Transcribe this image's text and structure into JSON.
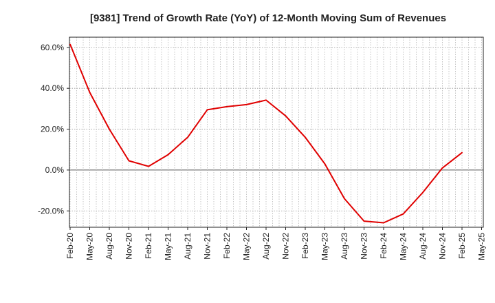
{
  "chart_data": {
    "type": "line",
    "title": "[9381]  Trend of Growth Rate (YoY) of 12-Month Moving Sum of Revenues",
    "xlabel": "",
    "ylabel": "",
    "x_ticks": [
      "Feb-20",
      "May-20",
      "Aug-20",
      "Nov-20",
      "Feb-21",
      "May-21",
      "Aug-21",
      "Nov-21",
      "Feb-22",
      "May-22",
      "Aug-22",
      "Nov-22",
      "Feb-23",
      "May-23",
      "Aug-23",
      "Nov-23",
      "Feb-24",
      "May-24",
      "Aug-24",
      "Nov-24",
      "Feb-25",
      "May-25"
    ],
    "y_ticks": [
      -20,
      0,
      20,
      40,
      60
    ],
    "y_tick_labels": [
      "-20.0%",
      "0.0%",
      "20.0%",
      "40.0%",
      "60.0%"
    ],
    "ylim": [
      -28,
      65
    ],
    "x_months": [
      "2020-02",
      "2020-03",
      "2020-04",
      "2020-05",
      "2020-06",
      "2020-07",
      "2020-08",
      "2020-09",
      "2020-10",
      "2020-11",
      "2020-12",
      "2021-01",
      "2021-02",
      "2021-03",
      "2021-04",
      "2021-05",
      "2021-06",
      "2021-07",
      "2021-08",
      "2021-09",
      "2021-10",
      "2021-11",
      "2021-12",
      "2022-01",
      "2022-02",
      "2022-03",
      "2022-04",
      "2022-05",
      "2022-06",
      "2022-07",
      "2022-08",
      "2022-09",
      "2022-10",
      "2022-11",
      "2022-12",
      "2023-01",
      "2023-02",
      "2023-03",
      "2023-04",
      "2023-05",
      "2023-06",
      "2023-07",
      "2023-08",
      "2023-09",
      "2023-10",
      "2023-11",
      "2023-12",
      "2024-01",
      "2024-02",
      "2024-03",
      "2024-04",
      "2024-05",
      "2024-06",
      "2024-07",
      "2024-08",
      "2024-09",
      "2024-10",
      "2024-11",
      "2024-12",
      "2025-01",
      "2025-02",
      "2025-03",
      "2025-04",
      "2025-05"
    ],
    "series": [
      {
        "name": "",
        "color": "#e00000",
        "values": [
          61.5,
          null,
          null,
          38.0,
          null,
          null,
          20.0,
          null,
          null,
          4.5,
          null,
          null,
          1.8,
          null,
          null,
          7.5,
          null,
          null,
          16.0,
          null,
          null,
          29.5,
          null,
          null,
          31.0,
          null,
          null,
          32.0,
          null,
          null,
          34.2,
          null,
          null,
          26.5,
          null,
          null,
          16.0,
          null,
          null,
          3.0,
          null,
          null,
          -14.0,
          null,
          null,
          -25.0,
          null,
          null,
          -25.8,
          null,
          null,
          -21.5,
          null,
          null,
          -11.0,
          null,
          null,
          1.0,
          null,
          null,
          8.5
        ]
      }
    ],
    "grid": true,
    "legend": "none"
  }
}
